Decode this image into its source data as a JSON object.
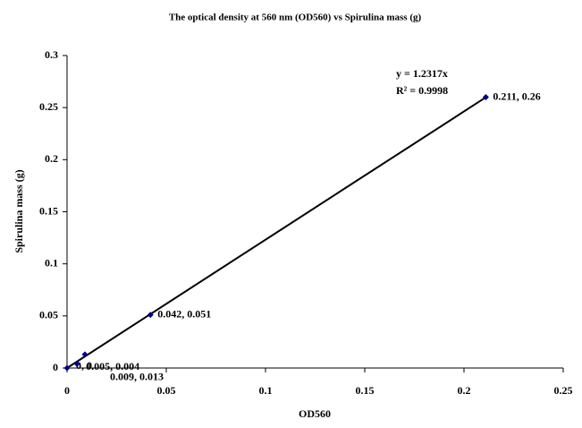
{
  "chart_data": {
    "type": "scatter",
    "title": "The optical density at 560 nm (OD560) vs Spirulina mass (g)",
    "x_label": "OD560",
    "y_label": "Spirulina mass (g)",
    "x": [
      0,
      0.005,
      0.009,
      0.042,
      0.211
    ],
    "values": [
      0,
      0.004,
      0.013,
      0.051,
      0.26
    ],
    "value_labels": [
      "0, 0",
      "0.005, 0.004",
      "0.009, 0.013",
      "0.042, 0.051",
      "0.211, 0.26"
    ],
    "color": "#00008b",
    "trendline": {
      "slope": 1.2317,
      "equation": "y = 1.2317x",
      "r_squared": "R² = 0.9998",
      "color": "#000000"
    },
    "xlim": [
      0,
      0.25
    ],
    "xticks": [
      0,
      0.05,
      0.1,
      0.15,
      0.2,
      0.25
    ],
    "ylim": [
      0,
      0.3
    ],
    "yticks": [
      0,
      0.05,
      0.1,
      0.15,
      0.2,
      0.25,
      0.3
    ],
    "grid": false
  }
}
